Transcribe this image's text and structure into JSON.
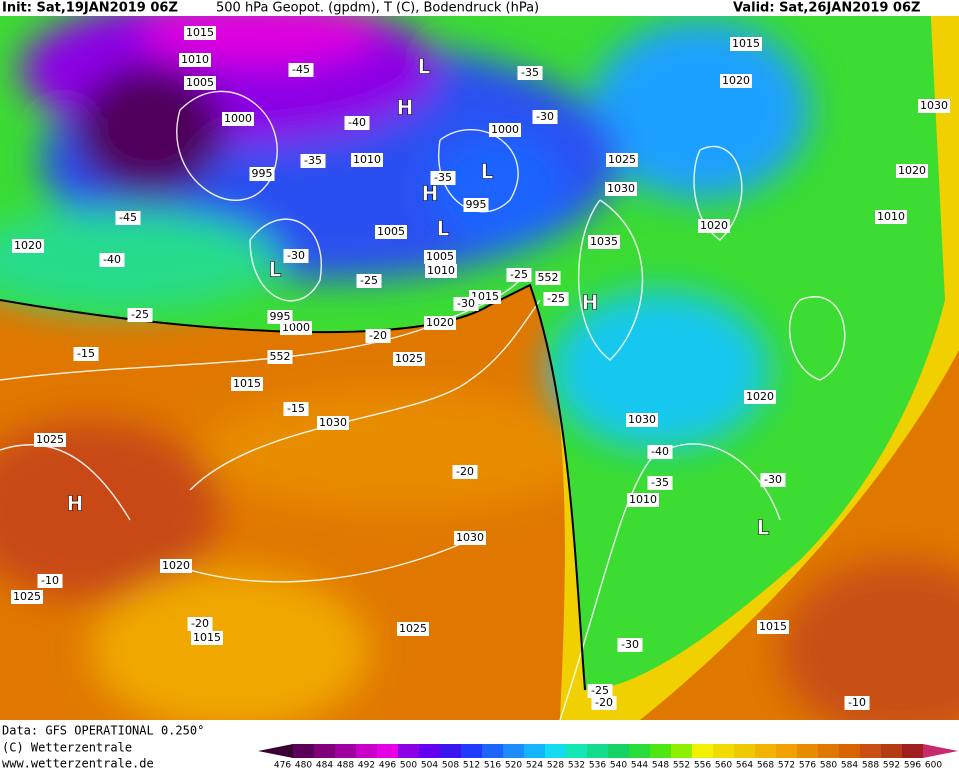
{
  "header": {
    "init": "Init: Sat,19JAN2019 06Z",
    "title": "500 hPa Geopot. (gpdm), T (C), Bodendruck (hPa)",
    "valid": "Valid: Sat,26JAN2019 06Z"
  },
  "map_labels": [
    "1015",
    "1010",
    "1005",
    "1000",
    "995",
    "-45",
    "-40",
    "-35",
    "1010",
    "-35",
    "995",
    "1005",
    "1000",
    "-35",
    "-30",
    "1005",
    "1010",
    "-30",
    "-25",
    "-25",
    "552",
    "-25",
    "1015",
    "-30",
    "1020",
    "1000",
    "995",
    "-20",
    "1025",
    "552",
    "-15",
    "-25",
    "1020",
    "-40",
    "-45",
    "1015",
    "-15",
    "1030",
    "1025",
    "-20",
    "1030",
    "1020",
    "-10",
    "1025",
    "-20",
    "1015",
    "1025",
    "1025",
    "1030",
    "1035",
    "1020",
    "1015",
    "1020",
    "1030",
    "1020",
    "1010",
    "1020",
    "1030",
    "-40",
    "-35",
    "1010",
    "-30",
    "1015",
    "-30",
    "-25",
    "-20",
    "-10"
  ],
  "centers": [
    "L",
    "H",
    "L",
    "H",
    "L",
    "L",
    "H",
    "H",
    "L"
  ],
  "footer": {
    "data": "Data: GFS OPERATIONAL 0.250°",
    "copyright": "(C) Wetterzentrale",
    "url": "www.wetterzentrale.de"
  },
  "colorbar": {
    "labels": [
      "476",
      "480",
      "484",
      "488",
      "492",
      "496",
      "500",
      "504",
      "508",
      "512",
      "516",
      "520",
      "524",
      "528",
      "532",
      "536",
      "540",
      "544",
      "548",
      "552",
      "556",
      "560",
      "564",
      "568",
      "572",
      "576",
      "580",
      "584",
      "588",
      "592",
      "596",
      "600"
    ],
    "colors": [
      "#3a0034",
      "#5a005a",
      "#80007a",
      "#a000a0",
      "#c800c8",
      "#e600e6",
      "#8c00e6",
      "#6400f0",
      "#3c14f0",
      "#1e3cff",
      "#1e64ff",
      "#1e8cff",
      "#14b4ff",
      "#14dcf0",
      "#14e6b4",
      "#14dc8c",
      "#14d264",
      "#28dc3c",
      "#50e614",
      "#8cf000",
      "#f0f000",
      "#f0dc00",
      "#f0c800",
      "#f0b400",
      "#f0a000",
      "#e88c00",
      "#e07800",
      "#d86400",
      "#c85014",
      "#b43c14",
      "#a01e1e",
      "#c8286e"
    ]
  }
}
